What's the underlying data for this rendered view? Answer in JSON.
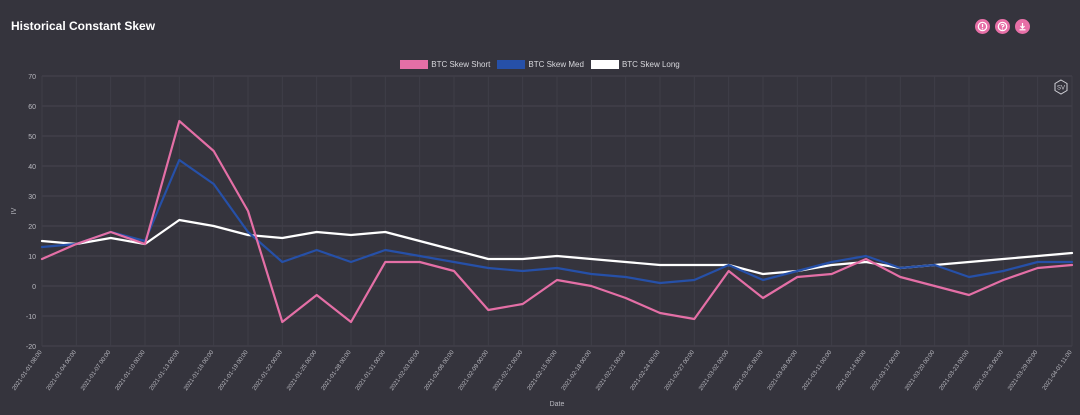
{
  "title": "Historical Constant Skew",
  "toolbar": {
    "icons": [
      "info-icon",
      "help-icon",
      "download-icon"
    ]
  },
  "badge": {
    "text": "SV"
  },
  "chart_data": {
    "type": "line",
    "title": "Historical Constant Skew",
    "xlabel": "Date",
    "ylabel": "IV",
    "ylim": [
      -20,
      70
    ],
    "yticks": [
      -20,
      -10,
      0,
      10,
      20,
      30,
      40,
      50,
      60,
      70
    ],
    "grid": true,
    "legend_position": "top-center",
    "x": [
      "2021-01-01 08:00",
      "2021-01-04 00:00",
      "2021-01-07 00:00",
      "2021-01-10 00:00",
      "2021-01-13 00:00",
      "2021-01-16 00:00",
      "2021-01-19 00:00",
      "2021-01-22 00:00",
      "2021-01-25 00:00",
      "2021-01-28 00:00",
      "2021-01-31 00:00",
      "2021-02-03 00:00",
      "2021-02-06 00:00",
      "2021-02-09 00:00",
      "2021-02-12 00:00",
      "2021-02-15 00:00",
      "2021-02-18 00:00",
      "2021-02-21 00:00",
      "2021-02-24 00:00",
      "2021-02-27 00:00",
      "2021-03-02 00:00",
      "2021-03-05 00:00",
      "2021-03-08 00:00",
      "2021-03-11 00:00",
      "2021-03-14 00:00",
      "2021-03-17 00:00",
      "2021-03-20 00:00",
      "2021-03-23 00:00",
      "2021-03-26 00:00",
      "2021-03-29 00:00",
      "2021-04-01 11:00"
    ],
    "series": [
      {
        "name": "BTC Skew Short",
        "color": "#e46fa6",
        "values": [
          9,
          14,
          18,
          14,
          55,
          45,
          25,
          -12,
          -3,
          -12,
          8,
          8,
          5,
          -8,
          -6,
          2,
          0,
          -4,
          -9,
          -11,
          5,
          -4,
          3,
          4,
          9,
          3,
          0,
          -3,
          2,
          6,
          7
        ]
      },
      {
        "name": "BTC Skew Med",
        "color": "#2650a8",
        "values": [
          13,
          14,
          18,
          15,
          42,
          34,
          18,
          8,
          12,
          8,
          12,
          10,
          8,
          6,
          5,
          6,
          4,
          3,
          1,
          2,
          7,
          2,
          5,
          8,
          10,
          6,
          7,
          3,
          5,
          8,
          8
        ]
      },
      {
        "name": "BTC Skew Long",
        "color": "#ffffff",
        "values": [
          15,
          14,
          16,
          14,
          22,
          20,
          17,
          16,
          18,
          17,
          18,
          15,
          12,
          9,
          9,
          10,
          9,
          8,
          7,
          7,
          7,
          4,
          5,
          7,
          8,
          6,
          7,
          8,
          9,
          10,
          11
        ]
      }
    ]
  }
}
